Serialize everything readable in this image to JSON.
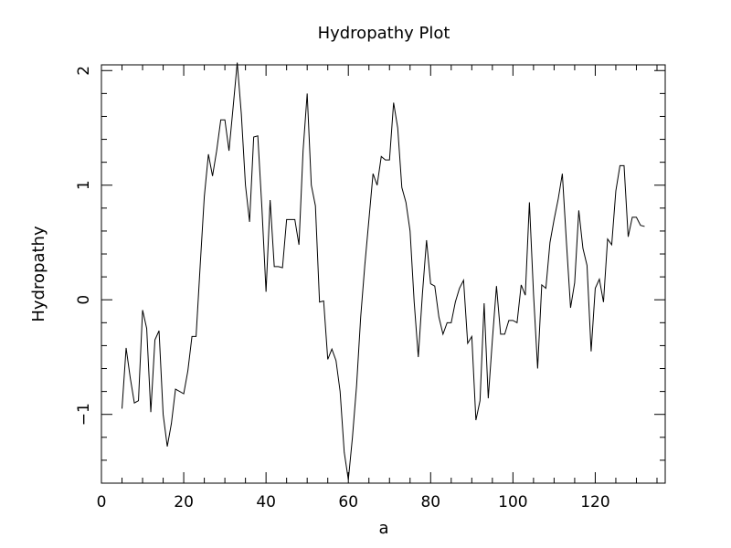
{
  "chart_data": {
    "type": "line",
    "title": "Hydropathy Plot",
    "xlabel": "a",
    "ylabel": "Hydropathy",
    "xlim": [
      0,
      137
    ],
    "ylim": [
      -1.6,
      2.05
    ],
    "xticks": [
      0,
      20,
      40,
      60,
      80,
      100,
      120
    ],
    "xtick_labels": [
      "0",
      "20",
      "40",
      "60",
      "80",
      "100",
      "120"
    ],
    "yticks": [
      -1,
      0,
      1,
      2
    ],
    "ytick_labels": [
      "−1",
      "0",
      "1",
      "2"
    ],
    "grid": false,
    "legend": "none",
    "series": [
      {
        "color": "#000000",
        "x": [
          5,
          6,
          7,
          8,
          9,
          10,
          11,
          12,
          13,
          14,
          15,
          16,
          17,
          18,
          19,
          20,
          21,
          22,
          23,
          24,
          25,
          26,
          27,
          28,
          29,
          30,
          31,
          32,
          33,
          34,
          35,
          36,
          37,
          38,
          39,
          40,
          41,
          42,
          43,
          44,
          45,
          46,
          47,
          48,
          49,
          50,
          51,
          52,
          53,
          54,
          55,
          56,
          57,
          58,
          59,
          60,
          61,
          62,
          63,
          64,
          65,
          66,
          67,
          68,
          69,
          70,
          71,
          72,
          73,
          74,
          75,
          76,
          77,
          78,
          79,
          80,
          81,
          82,
          83,
          84,
          85,
          86,
          87,
          88,
          89,
          90,
          91,
          92,
          93,
          94,
          95,
          96,
          97,
          98,
          99,
          100,
          101,
          102,
          103,
          104,
          105,
          106,
          107,
          108,
          109,
          110,
          111,
          112,
          113,
          114,
          115,
          116,
          117,
          118,
          119,
          120,
          121,
          122,
          123,
          124,
          125,
          126,
          127,
          128,
          129,
          130,
          131,
          132
        ],
        "y": [
          -0.95,
          -0.42,
          -0.68,
          -0.9,
          -0.88,
          -0.09,
          -0.25,
          -0.98,
          -0.35,
          -0.27,
          -1.0,
          -1.28,
          -1.08,
          -0.78,
          -0.8,
          -0.82,
          -0.62,
          -0.32,
          -0.32,
          0.3,
          0.9,
          1.27,
          1.08,
          1.3,
          1.57,
          1.57,
          1.3,
          1.68,
          2.07,
          1.62,
          1.0,
          0.68,
          1.42,
          1.43,
          0.8,
          0.07,
          0.87,
          0.29,
          0.29,
          0.28,
          0.7,
          0.7,
          0.7,
          0.48,
          1.3,
          1.8,
          1.0,
          0.82,
          -0.02,
          -0.01,
          -0.52,
          -0.43,
          -0.53,
          -0.8,
          -1.33,
          -1.57,
          -1.2,
          -0.75,
          -0.15,
          0.3,
          0.7,
          1.1,
          1.0,
          1.25,
          1.22,
          1.22,
          1.72,
          1.5,
          0.98,
          0.85,
          0.6,
          -0.02,
          -0.5,
          0.05,
          0.52,
          0.14,
          0.12,
          -0.15,
          -0.3,
          -0.2,
          -0.2,
          -0.02,
          0.1,
          0.17,
          -0.38,
          -0.32,
          -1.05,
          -0.88,
          -0.03,
          -0.86,
          -0.35,
          0.12,
          -0.3,
          -0.3,
          -0.18,
          -0.18,
          -0.2,
          0.13,
          0.04,
          0.85,
          0.05,
          -0.6,
          0.13,
          0.1,
          0.5,
          0.7,
          0.88,
          1.1,
          0.5,
          -0.07,
          0.15,
          0.78,
          0.45,
          0.3,
          -0.45,
          0.1,
          0.18,
          -0.02,
          0.53,
          0.48,
          0.95,
          1.17,
          1.17,
          0.55,
          0.72,
          0.72,
          0.65,
          0.64
        ]
      }
    ]
  }
}
